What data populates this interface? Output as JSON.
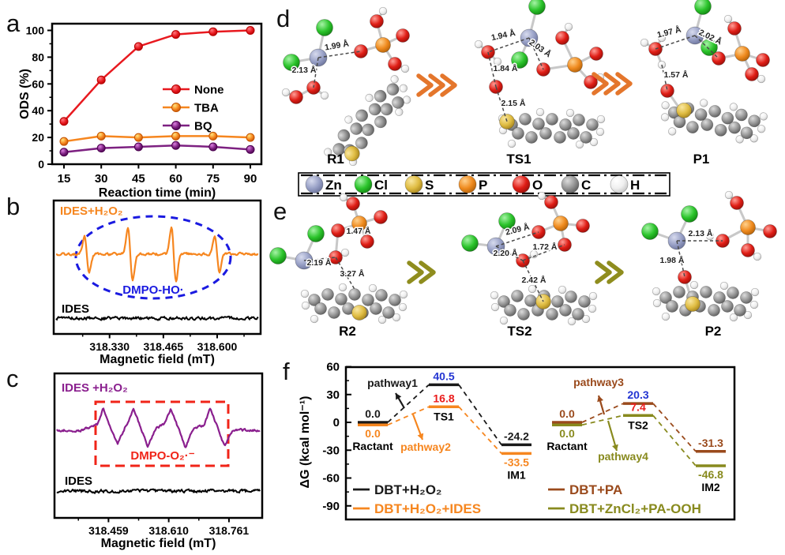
{
  "figure": {
    "panel_labels": {
      "a": "a",
      "b": "b",
      "c": "c",
      "d": "d",
      "e": "e",
      "f": "f"
    }
  },
  "chart_data": [
    {
      "panel": "a",
      "type": "line",
      "x": [
        15,
        30,
        45,
        60,
        75,
        90
      ],
      "xlabel": "Reaction time (min)",
      "ylabel": "ODS (%)",
      "ylim": [
        0,
        105
      ],
      "yticks": [
        0,
        20,
        40,
        60,
        80,
        100
      ],
      "legend_position": "middle-right",
      "series": [
        {
          "name": "None",
          "color": "#e8191f",
          "values": [
            32,
            63,
            88,
            97,
            99,
            100
          ]
        },
        {
          "name": "TBA",
          "color": "#f6861f",
          "values": [
            17,
            21,
            20,
            21,
            21,
            20
          ]
        },
        {
          "name": "BQ",
          "color": "#7d2181",
          "values": [
            9,
            12,
            13,
            14,
            13,
            11
          ]
        }
      ]
    },
    {
      "panel": "b",
      "type": "line",
      "subtype": "epr-spectrum",
      "xlabel": "Magnetic field (mT)",
      "xticks": [
        "318.330",
        "318.465",
        "318.600"
      ],
      "series": [
        {
          "name": "IDES+H₂O₂",
          "color": "#f6861f",
          "peaks_x_fraction": [
            0.16,
            0.37,
            0.58,
            0.79
          ],
          "peak_amplitude_pattern": [
            1,
            1.6,
            1.6,
            1
          ]
        },
        {
          "name": "IDES",
          "color": "#000000",
          "signal": "flat baseline noise"
        }
      ],
      "annotation": {
        "text": "DMPO-HO·",
        "color": "#1a1ae0",
        "marker": "dashed-ellipse"
      }
    },
    {
      "panel": "c",
      "type": "line",
      "subtype": "epr-spectrum",
      "xlabel": "Magnetic field (mT)",
      "xticks": [
        "318.459",
        "318.610",
        "318.761"
      ],
      "series": [
        {
          "name": "IDES +H₂O₂",
          "color": "#8a1f8e",
          "peaks_x_fraction": [
            0.235,
            0.38,
            0.56,
            0.75
          ],
          "peak_amplitude_pattern": [
            1,
            1,
            1,
            1
          ]
        },
        {
          "name": "IDES",
          "color": "#000000",
          "signal": "flat baseline noise"
        }
      ],
      "annotation": {
        "text": "DMPO-O₂·⁻",
        "color": "#f02418",
        "marker": "dashed-rectangle"
      }
    },
    {
      "panel": "f",
      "type": "energy-diagram",
      "ylabel": "ΔG (kcal mol⁻¹)",
      "ylim": [
        -105,
        60
      ],
      "yticks": [
        60,
        30,
        0,
        -30,
        -60,
        -90
      ],
      "groups": [
        {
          "stations": [
            "Ractant",
            "TS1",
            "IM1"
          ],
          "pathways": [
            {
              "label": "pathway1",
              "color": "#1a1a1a",
              "direction": "up"
            },
            {
              "label": "pathway2",
              "color": "#f6861f",
              "direction": "down"
            }
          ],
          "series": [
            {
              "name": "DBT+H₂O₂",
              "color": "#1a1a1a",
              "values": [
                0.0,
                40.5,
                -24.2
              ],
              "value_label_colors": [
                "#1a1a1a",
                "#2335d2",
                "#1a1a1a"
              ]
            },
            {
              "name": "DBT+H₂O₂+IDES",
              "color": "#f6861f",
              "values": [
                0.0,
                16.8,
                -33.5
              ],
              "value_label_colors": [
                "#f6861f",
                "#ea1c1c",
                "#f6861f"
              ]
            }
          ]
        },
        {
          "stations": [
            "Ractant",
            "TS2",
            "IM2"
          ],
          "pathways": [
            {
              "label": "pathway3",
              "color": "#9a4a1c",
              "direction": "up"
            },
            {
              "label": "pathway4",
              "color": "#888a1e",
              "direction": "down"
            }
          ],
          "series": [
            {
              "name": "DBT+PA",
              "color": "#9a4a1c",
              "values": [
                0.0,
                20.3,
                -31.3
              ],
              "value_label_colors": [
                "#9a4a1c",
                "#2335d2",
                "#9a4a1c"
              ]
            },
            {
              "name": "DBT+ZnCl₂+PA-OOH",
              "color": "#888a1e",
              "values": [
                0.0,
                7.4,
                -46.8
              ],
              "value_label_colors": [
                "#888a1e",
                "#ea1c1c",
                "#888a1e"
              ]
            }
          ]
        }
      ]
    }
  ],
  "atom_legend": {
    "items": [
      {
        "symbol": "Zn",
        "color": "#8e96be"
      },
      {
        "symbol": "Cl",
        "color": "#2bc42b"
      },
      {
        "symbol": "S",
        "color": "#ddbb3f"
      },
      {
        "symbol": "P",
        "color": "#ef8a1e"
      },
      {
        "symbol": "O",
        "color": "#df1d15"
      },
      {
        "symbol": "C",
        "color": "#959595"
      },
      {
        "symbol": "H",
        "color": "#efefef"
      }
    ]
  },
  "panel_d": {
    "arrow_color": "#e4762c",
    "structures": [
      {
        "name": "R1",
        "bond_labels": [
          "1.99 Å",
          "2.13 Å"
        ]
      },
      {
        "name": "TS1",
        "bond_labels": [
          "1.94 Å",
          "2.03 Å",
          "1.84 Å",
          "2.15 Å"
        ]
      },
      {
        "name": "P1",
        "bond_labels": [
          "1.97 Å",
          "2.02 Å",
          "1.57 Å"
        ]
      }
    ]
  },
  "panel_e": {
    "arrow_color": "#8f8d1e",
    "structures": [
      {
        "name": "R2",
        "bond_labels": [
          "1.47 Å",
          "2.19 Å",
          "3.27 Å"
        ]
      },
      {
        "name": "TS2",
        "bond_labels": [
          "2.09 Å",
          "2.20 Å",
          "1.72 Å",
          "2.42 Å"
        ]
      },
      {
        "name": "P2",
        "bond_labels": [
          "2.13 Å",
          "1.98 Å"
        ]
      }
    ]
  }
}
